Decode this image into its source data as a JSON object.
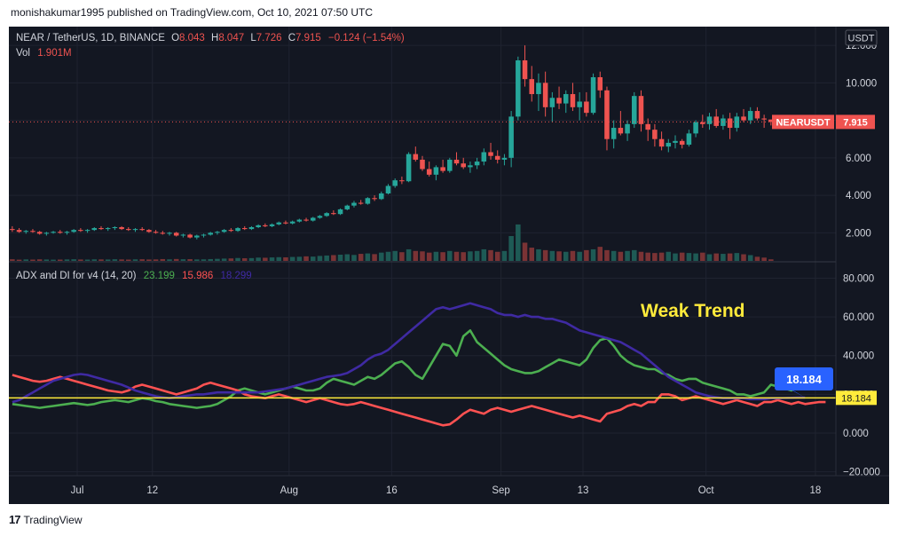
{
  "header": {
    "published_text": "monishakumar1995 published on TradingView.com, Oct 10, 2021 07:50 UTC"
  },
  "footer": {
    "brand": "TradingView",
    "logo_glyph": "17"
  },
  "legend": {
    "symbol": "NEAR / TetherUS, 1D, BINANCE",
    "o_label": "O",
    "o_value": "8.043",
    "h_label": "H",
    "h_value": "8.047",
    "l_label": "L",
    "l_value": "7.726",
    "c_label": "C",
    "c_value": "7.915",
    "change": "−0.124 (−1.54%)",
    "vol_label": "Vol",
    "vol_value": "1.901M"
  },
  "indicator_legend": {
    "name": "ADX and DI for v4 (14, 20)",
    "di_plus": "23.199",
    "di_minus": "15.986",
    "adx": "18.299"
  },
  "annotation": {
    "text": "Weak Trend",
    "callout_value": "18.184"
  },
  "currency_label": "USDT",
  "price_tag": {
    "symbol": "NEARUSDT",
    "value": "7.915"
  },
  "threshold_tag": "18.184",
  "colors": {
    "up": "#26a69a",
    "down": "#ef5350",
    "di_plus": "#4caf50",
    "di_minus": "#ff5252",
    "adx": "#3f2aa3",
    "threshold": "#ffeb3b",
    "annotation": "#ffeb3b",
    "background": "#131722",
    "callout": "#2962ff"
  },
  "chart_data": [
    {
      "type": "candlestick",
      "price_axis": {
        "ticks": [
          "12.000",
          "10.000",
          "8.000",
          "6.000",
          "4.000",
          "2.000"
        ],
        "tick_values": [
          12,
          10,
          8,
          6,
          4,
          2
        ],
        "range": [
          0.5,
          13
        ]
      },
      "x_axis": {
        "ticks": [
          "Jul",
          "12",
          "Aug",
          "16",
          "Sep",
          "13",
          "Oct",
          "18"
        ],
        "tick_positions": [
          10,
          21,
          41,
          56,
          72,
          84,
          102,
          118
        ],
        "range": [
          0,
          121
        ]
      },
      "last_price": 7.915,
      "ohlc": [
        [
          2.2,
          2.35,
          2.05,
          2.15
        ],
        [
          2.15,
          2.25,
          2.0,
          2.05
        ],
        [
          2.05,
          2.15,
          1.95,
          2.1
        ],
        [
          2.1,
          2.2,
          2.0,
          2.05
        ],
        [
          2.05,
          2.1,
          1.9,
          1.95
        ],
        [
          1.95,
          2.05,
          1.85,
          2.0
        ],
        [
          2.0,
          2.1,
          1.95,
          2.05
        ],
        [
          2.05,
          2.15,
          1.95,
          2.0
        ],
        [
          2.0,
          2.1,
          1.9,
          2.05
        ],
        [
          2.05,
          2.2,
          2.0,
          2.15
        ],
        [
          2.15,
          2.25,
          2.05,
          2.1
        ],
        [
          2.1,
          2.2,
          2.0,
          2.15
        ],
        [
          2.15,
          2.3,
          2.1,
          2.25
        ],
        [
          2.25,
          2.35,
          2.15,
          2.2
        ],
        [
          2.2,
          2.3,
          2.1,
          2.25
        ],
        [
          2.25,
          2.35,
          2.15,
          2.3
        ],
        [
          2.3,
          2.35,
          2.15,
          2.2
        ],
        [
          2.2,
          2.3,
          2.1,
          2.15
        ],
        [
          2.15,
          2.25,
          2.05,
          2.2
        ],
        [
          2.2,
          2.3,
          2.1,
          2.15
        ],
        [
          2.15,
          2.2,
          2.0,
          2.05
        ],
        [
          2.05,
          2.15,
          1.95,
          2.0
        ],
        [
          2.0,
          2.1,
          1.9,
          1.95
        ],
        [
          1.95,
          2.05,
          1.85,
          2.0
        ],
        [
          2.0,
          2.05,
          1.8,
          1.85
        ],
        [
          1.85,
          1.95,
          1.75,
          1.9
        ],
        [
          1.9,
          1.95,
          1.7,
          1.75
        ],
        [
          1.75,
          1.9,
          1.65,
          1.85
        ],
        [
          1.85,
          1.95,
          1.75,
          1.9
        ],
        [
          1.9,
          2.05,
          1.85,
          2.0
        ],
        [
          2.0,
          2.1,
          1.9,
          2.05
        ],
        [
          2.05,
          2.2,
          2.0,
          2.15
        ],
        [
          2.15,
          2.25,
          2.05,
          2.1
        ],
        [
          2.1,
          2.3,
          2.05,
          2.25
        ],
        [
          2.25,
          2.35,
          2.15,
          2.2
        ],
        [
          2.2,
          2.35,
          2.15,
          2.3
        ],
        [
          2.3,
          2.45,
          2.25,
          2.4
        ],
        [
          2.4,
          2.5,
          2.3,
          2.35
        ],
        [
          2.35,
          2.5,
          2.3,
          2.45
        ],
        [
          2.45,
          2.6,
          2.4,
          2.55
        ],
        [
          2.55,
          2.65,
          2.45,
          2.5
        ],
        [
          2.5,
          2.65,
          2.45,
          2.6
        ],
        [
          2.6,
          2.75,
          2.55,
          2.7
        ],
        [
          2.7,
          2.8,
          2.6,
          2.65
        ],
        [
          2.65,
          2.85,
          2.6,
          2.8
        ],
        [
          2.8,
          2.95,
          2.75,
          2.9
        ],
        [
          2.9,
          3.1,
          2.85,
          3.05
        ],
        [
          3.05,
          3.2,
          2.95,
          3.0
        ],
        [
          3.0,
          3.3,
          2.95,
          3.25
        ],
        [
          3.25,
          3.5,
          3.2,
          3.45
        ],
        [
          3.45,
          3.7,
          3.35,
          3.6
        ],
        [
          3.6,
          3.75,
          3.5,
          3.55
        ],
        [
          3.55,
          3.9,
          3.5,
          3.85
        ],
        [
          3.85,
          4.0,
          3.7,
          3.8
        ],
        [
          3.8,
          4.2,
          3.75,
          4.1
        ],
        [
          4.1,
          4.6,
          4.05,
          4.5
        ],
        [
          4.5,
          4.9,
          4.4,
          4.8
        ],
        [
          4.8,
          5.0,
          4.6,
          4.75
        ],
        [
          4.75,
          6.3,
          4.7,
          6.2
        ],
        [
          6.2,
          6.6,
          5.8,
          5.9
        ],
        [
          5.9,
          6.1,
          5.3,
          5.4
        ],
        [
          5.4,
          5.8,
          5.0,
          5.1
        ],
        [
          5.1,
          5.6,
          4.8,
          5.5
        ],
        [
          5.5,
          5.9,
          5.2,
          5.3
        ],
        [
          5.3,
          6.0,
          5.2,
          5.9
        ],
        [
          5.9,
          6.3,
          5.6,
          5.7
        ],
        [
          5.7,
          6.0,
          5.4,
          5.5
        ],
        [
          5.5,
          5.8,
          5.2,
          5.6
        ],
        [
          5.6,
          6.0,
          5.4,
          5.8
        ],
        [
          5.8,
          6.5,
          5.6,
          6.3
        ],
        [
          6.3,
          6.8,
          5.9,
          6.1
        ],
        [
          6.1,
          6.4,
          5.7,
          5.9
        ],
        [
          5.9,
          6.2,
          5.6,
          6.0
        ],
        [
          6.0,
          8.5,
          5.5,
          8.2
        ],
        [
          8.2,
          11.4,
          8.0,
          11.2
        ],
        [
          11.2,
          12.0,
          9.8,
          10.2
        ],
        [
          10.2,
          10.9,
          9.0,
          9.4
        ],
        [
          9.4,
          10.5,
          8.5,
          10.0
        ],
        [
          10.0,
          10.6,
          8.2,
          8.7
        ],
        [
          8.7,
          9.5,
          7.9,
          9.2
        ],
        [
          9.2,
          9.8,
          8.6,
          8.9
        ],
        [
          8.9,
          9.6,
          8.4,
          9.4
        ],
        [
          9.4,
          10.0,
          8.5,
          8.7
        ],
        [
          8.7,
          9.5,
          8.0,
          9.0
        ],
        [
          9.0,
          9.5,
          8.2,
          8.4
        ],
        [
          8.4,
          10.5,
          8.3,
          10.3
        ],
        [
          10.3,
          10.6,
          9.2,
          9.6
        ],
        [
          9.6,
          9.8,
          6.4,
          7.0
        ],
        [
          7.0,
          8.0,
          6.5,
          7.6
        ],
        [
          7.6,
          8.5,
          7.2,
          7.3
        ],
        [
          7.3,
          8.0,
          6.9,
          7.8
        ],
        [
          7.8,
          9.5,
          7.6,
          9.3
        ],
        [
          9.3,
          9.6,
          7.4,
          7.8
        ],
        [
          7.8,
          8.1,
          6.9,
          7.5
        ],
        [
          7.5,
          7.8,
          6.6,
          7.0
        ],
        [
          7.0,
          7.4,
          6.4,
          6.6
        ],
        [
          6.6,
          7.0,
          6.3,
          6.8
        ],
        [
          6.8,
          7.2,
          6.5,
          6.9
        ],
        [
          6.9,
          7.0,
          6.5,
          6.7
        ],
        [
          6.7,
          7.5,
          6.6,
          7.3
        ],
        [
          7.3,
          8.0,
          7.1,
          7.9
        ],
        [
          7.9,
          8.3,
          7.6,
          7.8
        ],
        [
          7.8,
          8.4,
          7.5,
          8.2
        ],
        [
          8.2,
          8.6,
          7.6,
          7.7
        ],
        [
          7.7,
          8.3,
          7.5,
          8.1
        ],
        [
          8.1,
          8.4,
          7.0,
          7.6
        ],
        [
          7.6,
          8.4,
          7.4,
          8.2
        ],
        [
          8.2,
          8.6,
          7.9,
          8.0
        ],
        [
          8.0,
          8.7,
          7.8,
          8.5
        ],
        [
          8.5,
          8.7,
          8.0,
          8.1
        ],
        [
          8.1,
          8.3,
          7.6,
          8.043
        ],
        [
          8.043,
          8.047,
          7.726,
          7.915
        ]
      ],
      "volume_range": [
        0,
        60000000
      ],
      "volume": [
        2,
        1.5,
        1.8,
        1.6,
        1.9,
        1.7,
        1.5,
        1.6,
        1.8,
        2,
        1.7,
        1.6,
        1.9,
        1.8,
        1.7,
        2,
        1.8,
        1.6,
        1.9,
        2,
        1.7,
        1.8,
        2.2,
        1.9,
        2.3,
        2,
        2.1,
        1.8,
        1.9,
        2.2,
        2.5,
        2.8,
        3,
        3.5,
        3.2,
        3.4,
        4,
        3.8,
        4.2,
        4.5,
        4.3,
        4.8,
        5,
        5.5,
        5.2,
        6,
        6.5,
        7,
        7.5,
        8,
        7.2,
        8.5,
        9,
        8.2,
        10,
        11,
        12,
        10.5,
        14,
        12,
        11.5,
        10,
        11,
        10.5,
        12,
        11,
        10.5,
        11.5,
        12,
        14,
        13,
        11,
        12,
        30,
        44,
        22,
        16,
        14,
        13,
        12,
        11.5,
        11,
        12,
        11,
        13,
        14,
        17,
        13,
        12,
        11,
        12,
        13,
        11,
        10,
        9.5,
        10,
        11,
        9,
        10,
        9.5,
        9,
        10,
        8,
        9,
        8.5,
        9,
        9.5,
        8,
        7,
        5,
        4,
        1.901
      ]
    },
    {
      "type": "line",
      "name": "ADX and DI for v4 (14, 20)",
      "y_axis": {
        "ticks": [
          "80.000",
          "60.000",
          "40.000",
          "20.000",
          "0.000",
          "−20.000"
        ],
        "tick_values": [
          80,
          60,
          40,
          20,
          0,
          -20
        ],
        "range": [
          -22,
          88
        ]
      },
      "threshold": 18.184,
      "series": [
        {
          "name": "di_plus",
          "values": [
            15,
            14.5,
            14,
            13.5,
            13,
            13.5,
            14,
            14.5,
            15,
            15.5,
            15,
            14.5,
            15,
            16,
            16.5,
            17,
            16.5,
            16,
            17,
            18,
            17.5,
            16.5,
            16,
            15,
            14.5,
            14,
            13.5,
            13,
            13.5,
            14,
            15,
            17,
            19,
            22,
            23,
            22,
            21,
            20,
            21,
            22,
            23,
            24,
            23,
            22,
            22,
            23,
            26,
            28,
            27,
            26,
            25,
            27,
            29,
            28,
            30,
            33,
            36,
            37,
            34,
            30,
            28,
            34,
            40,
            46,
            45,
            40,
            50,
            53,
            47,
            44,
            41,
            38,
            35,
            33,
            32,
            31,
            31,
            32,
            34,
            36,
            38,
            37,
            36,
            35,
            38,
            44,
            48,
            49,
            45,
            40,
            37,
            35,
            34,
            33,
            33,
            31,
            30,
            28,
            27,
            28,
            28,
            26,
            25,
            24,
            23,
            22,
            20,
            20,
            19,
            20,
            21,
            25,
            24,
            23,
            22,
            25,
            24,
            23,
            23.5,
            24,
            23.199
          ]
        },
        {
          "name": "di_minus",
          "values": [
            30,
            29,
            28,
            27,
            26.5,
            27,
            28,
            29,
            28,
            27,
            26,
            25,
            24,
            23,
            22,
            21.5,
            21,
            22,
            24,
            25,
            24,
            23,
            22,
            21,
            20,
            21,
            22,
            23,
            25,
            26,
            25,
            24,
            23,
            22,
            20,
            19,
            18.5,
            18,
            19,
            20,
            19,
            18,
            17,
            16,
            17,
            18,
            17,
            16,
            15,
            14.5,
            15,
            16,
            15,
            14,
            13,
            12,
            11,
            10,
            9,
            8,
            7,
            6,
            5,
            4,
            4.5,
            7,
            10,
            12,
            11,
            10,
            12,
            13,
            12,
            11,
            12,
            13,
            14,
            13,
            12,
            11,
            10,
            9,
            8,
            9,
            8,
            7,
            6,
            10,
            11,
            12,
            14,
            15,
            14,
            16,
            16,
            20,
            20,
            19,
            17,
            18,
            19,
            18,
            17,
            16,
            15,
            16,
            17,
            16,
            15,
            14,
            16,
            16,
            17,
            16,
            15,
            16,
            15,
            15.5,
            16,
            15.986
          ]
        },
        {
          "name": "adx",
          "values": [
            16,
            17,
            19,
            21,
            23,
            25,
            27,
            28,
            29,
            30,
            30.5,
            30,
            29,
            28,
            27,
            26,
            25,
            23.5,
            22,
            21,
            20,
            19,
            18.5,
            18,
            18.5,
            19,
            19.5,
            20,
            20,
            20.5,
            21,
            21,
            21,
            21,
            21,
            21,
            21,
            21.5,
            22,
            22.5,
            23,
            24,
            25,
            26,
            27,
            28,
            29,
            29.5,
            30,
            31,
            33,
            35,
            38,
            40,
            41,
            43,
            46,
            49,
            52,
            55,
            58,
            61,
            64,
            65,
            64,
            65,
            66,
            67,
            66,
            65,
            64,
            62,
            61,
            61,
            60,
            61,
            60,
            60,
            59,
            59,
            58,
            57,
            55,
            53,
            52,
            51,
            50,
            49,
            48,
            47,
            45,
            43,
            41,
            38,
            35,
            32,
            29,
            27,
            25,
            23,
            21,
            20,
            19,
            18.5,
            18,
            18,
            18,
            18,
            17.5,
            17.5,
            17.5,
            18,
            18,
            18.1,
            18.2,
            18.3,
            18.299
          ]
        }
      ]
    }
  ]
}
